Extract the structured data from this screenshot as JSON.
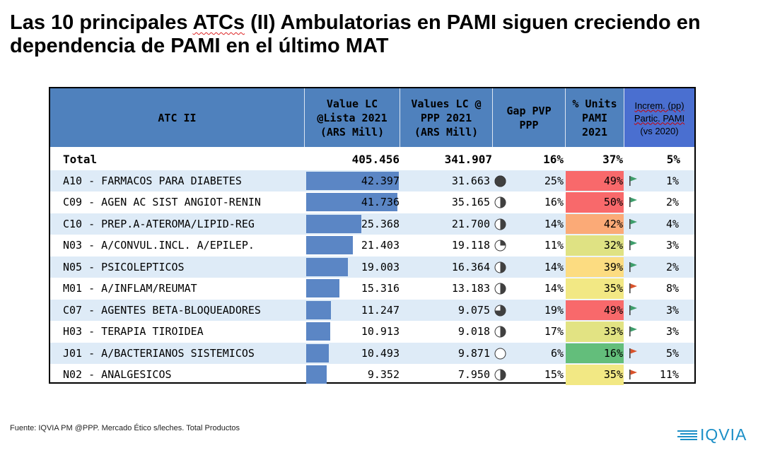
{
  "title": {
    "pre": "Las 10 principales ",
    "underlined": "ATCs",
    "post": " (II) Ambulatorias en PAMI siguen creciendo en",
    "line2": "dependencia de PAMI en el último MAT"
  },
  "chart_data": {
    "type": "table",
    "columns": [
      "ATC II",
      "Value LC @Lista 2021 (ARS Mill)",
      "Values LC @ PPP 2021 (ARS Mill)",
      "Gap PVP PPP",
      "% Units PAMI 2021",
      "Increm. (pp) Partic. PAMI (vs 2020)"
    ],
    "header_lines": {
      "atc": [
        "ATC II"
      ],
      "v1": [
        "Value LC",
        "@Lista 2021",
        "(ARS Mill)"
      ],
      "v2": [
        "Values LC @",
        "PPP 2021",
        "(ARS Mill)"
      ],
      "gap": [
        "Gap PVP",
        "PPP"
      ],
      "units": [
        "% Units",
        "PAMI",
        "2021"
      ],
      "inc": [
        "Increm. (pp)",
        "Partic. PAMI",
        "(vs 2020)"
      ]
    },
    "bar_max": 42.397,
    "total": {
      "label": "Total",
      "v1": "405.456",
      "v2": "341.907",
      "gap": "16%",
      "units": "37%",
      "inc": "5%"
    },
    "rows": [
      {
        "label": "A10 - FARMACOS PARA DIABETES",
        "v1": "42.397",
        "v1_num": 42.397,
        "v2": "31.663",
        "pie": 1.0,
        "gap": "25%",
        "units": "49%",
        "heat": "#f8696b",
        "flag": "green",
        "inc": "1%"
      },
      {
        "label": "C09 - AGEN AC SIST ANGIOT-RENIN",
        "v1": "41.736",
        "v1_num": 41.736,
        "v2": "35.165",
        "pie": 0.5,
        "gap": "16%",
        "units": "50%",
        "heat": "#f8696b",
        "flag": "green",
        "inc": "2%"
      },
      {
        "label": "C10 - PREP.A-ATEROMA/LIPID-REG",
        "v1": "25.368",
        "v1_num": 25.368,
        "v2": "21.700",
        "pie": 0.5,
        "gap": "14%",
        "units": "42%",
        "heat": "#fbaa77",
        "flag": "green",
        "inc": "4%"
      },
      {
        "label": "N03 - A/CONVUL.INCL. A/EPILEP.",
        "v1": "21.403",
        "v1_num": 21.403,
        "v2": "19.118",
        "pie": 0.25,
        "gap": "11%",
        "units": "32%",
        "heat": "#dfe283",
        "flag": "green",
        "inc": "3%"
      },
      {
        "label": "N05 - PSICOLEPTICOS",
        "v1": "19.003",
        "v1_num": 19.003,
        "v2": "16.364",
        "pie": 0.5,
        "gap": "14%",
        "units": "39%",
        "heat": "#fcdc81",
        "flag": "green",
        "inc": "2%"
      },
      {
        "label": "M01 - A/INFLAM/REUMAT",
        "v1": "15.316",
        "v1_num": 15.316,
        "v2": "13.183",
        "pie": 0.5,
        "gap": "14%",
        "units": "35%",
        "heat": "#f2e884",
        "flag": "red",
        "inc": "8%"
      },
      {
        "label": "C07 - AGENTES BETA-BLOQUEADORES",
        "v1": "11.247",
        "v1_num": 11.247,
        "v2": "9.075",
        "pie": 0.75,
        "gap": "19%",
        "units": "49%",
        "heat": "#f8696b",
        "flag": "green",
        "inc": "3%"
      },
      {
        "label": "H03 - TERAPIA TIROIDEA",
        "v1": "10.913",
        "v1_num": 10.913,
        "v2": "9.018",
        "pie": 0.5,
        "gap": "17%",
        "units": "33%",
        "heat": "#e2e383",
        "flag": "green",
        "inc": "3%"
      },
      {
        "label": "J01 - A/BACTERIANOS SISTEMICOS",
        "v1": "10.493",
        "v1_num": 10.493,
        "v2": "9.871",
        "pie": 0.0,
        "gap": "6%",
        "units": "16%",
        "heat": "#63be7b",
        "flag": "red",
        "inc": "5%"
      },
      {
        "label": "N02 - ANALGESICOS",
        "v1": "9.352",
        "v1_num": 9.352,
        "v2": "7.950",
        "pie": 0.5,
        "gap": "15%",
        "units": "35%",
        "heat": "#f2e884",
        "flag": "red",
        "inc": "11%"
      }
    ]
  },
  "footer": "Fuente: IQVIA PM @PPP. Mercado Ético s/leches. Total Productos",
  "logo": "IQVIA"
}
